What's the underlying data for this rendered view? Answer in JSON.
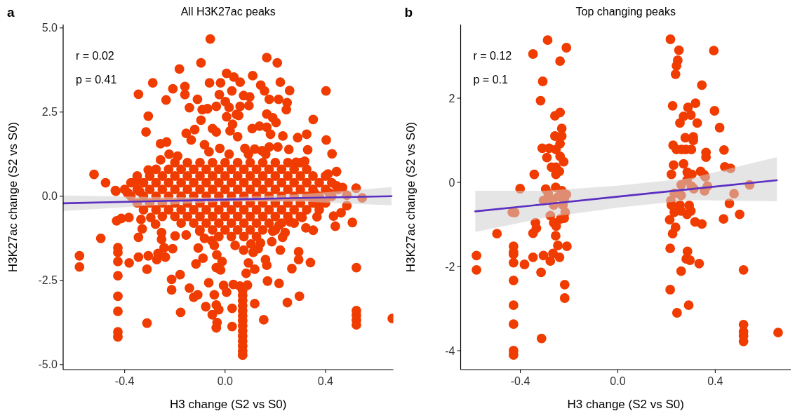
{
  "chart_data": [
    {
      "type": "scatter",
      "title": "All H3K27ac peaks",
      "xlabel": "H3 change (S2 vs S0)",
      "ylabel": "H3K27ac change (S2 vs S0)",
      "annotations": [
        "a",
        "r = 0.02",
        "p = 0.41"
      ],
      "xlim": [
        -0.645,
        0.67
      ],
      "ylim": [
        -5.15,
        5.1
      ],
      "xticks": [
        {
          "value": -0.4,
          "label": "-0.4"
        },
        {
          "value": 0,
          "label": "0.0"
        },
        {
          "value": 0.4,
          "label": "0.4"
        }
      ],
      "yticks": [
        {
          "value": -5,
          "label": "-5.0"
        },
        {
          "value": -2.5,
          "label": "-2.5"
        },
        {
          "value": 0,
          "label": "0.0"
        },
        {
          "value": 2.5,
          "label": "2.5"
        },
        {
          "value": 5,
          "label": "5.0"
        }
      ],
      "series": [
        {
          "marker": "circle",
          "color": "#f03c00",
          "x": [
            -0.059,
            0.166,
            0.208,
            -0.096,
            -0.182,
            -0.288,
            -0.345,
            -0.062,
            0.006,
            0.035,
            0.06,
            0.11,
            0.142,
            0.22,
            0.257,
            0.402,
            -0.208,
            -0.16,
            -0.16,
            -0.11,
            -0.235,
            -0.018,
            0.027,
            0.074,
            0.098,
            0.157,
            0.176,
            0.213,
            0.247,
            -0.023,
            0.001,
            0.016,
            0.06,
            0.095,
            -0.142,
            -0.091,
            -0.07,
            -0.035,
            0.045,
            0.054,
            0.166,
            0.19,
            0.203,
            0.244,
            0.351,
            -0.306,
            -0.315,
            -0.096,
            0.006,
            0.03,
            0.108,
            0.137,
            0.166,
            0.181,
            0.23,
            0.289,
            0.325,
            0.403,
            -0.155,
            -0.121,
            -0.05,
            -0.035,
            0.02,
            0.05,
            -0.257,
            -0.233,
            -0.135,
            -0.082,
            -0.021,
            0.079,
            0.118,
            0.147,
            0.176,
            0.21,
            0.254,
            0.329,
            0.426,
            -0.223,
            -0.189,
            -0.064,
            0.016,
            0.093,
            0.162,
            0.283,
            0.317,
            -0.257,
            -0.522,
            -0.476,
            -0.435,
            -0.388,
            -0.34,
            -0.306,
            -0.354,
            0.41,
            0.444,
            0.444,
            0.468,
            0.522,
            0.546,
            -0.437,
            -0.388,
            -0.432,
            -0.413,
            -0.383,
            -0.495,
            -0.58,
            -0.58,
            -0.427,
            -0.427,
            -0.427,
            -0.427,
            -0.427,
            -0.427,
            -0.427,
            -0.427,
            -0.382,
            -0.345,
            -0.345,
            -0.33,
            -0.311,
            -0.306,
            -0.311,
            -0.272,
            -0.267,
            -0.238,
            -0.243,
            -0.209,
            -0.253,
            -0.213,
            -0.213,
            -0.179,
            -0.177,
            -0.142,
            -0.125,
            -0.109,
            -0.116,
            -0.088,
            -0.107,
            -0.077,
            -0.065,
            -0.051,
            -0.043,
            -0.035,
            -0.025,
            -0.032,
            -0.035,
            -0.006,
            0.006,
            0.028,
            0.028,
            0.033,
            -0.035,
            -0.018,
            -0.033,
            -0.012,
            -0.043,
            -0.053,
            0.059,
            0.089,
            0.084,
            0.093,
            0.118,
            0.118,
            0.154,
            0.169,
            0.215,
            0.166,
            0.161,
            0.22,
            0.186,
            0.248,
            0.266,
            0.296,
            0.293,
            0.293,
            0.34,
            0.322,
            0.351,
            0.366,
            0.432,
            0.439,
            0.462,
            0.507,
            0.485,
            0.523,
            0.523,
            0.523,
            0.523,
            0.523,
            0.666,
            0.239,
            0.215,
            0.229,
            0.19,
            0.132,
            0.141,
            0.112,
            0.04,
            0.074,
            0.103,
            -0.082,
            -0.101,
            -0.155,
            -0.199,
            -0.253,
            -0.277,
            -0.296,
            -0.335,
            0.356,
            0.415,
            0.485,
            0.366,
            0.307,
            0.259,
            0.07,
            0.07,
            0.07,
            0.07,
            0.07,
            0.07,
            0.07,
            0.07,
            0.07,
            0.07,
            0.07,
            0.07,
            0.07,
            0.07,
            -0.2,
            -0.15,
            -0.1,
            -0.05,
            0,
            0.05,
            0.1,
            0.15,
            0.2,
            0.25,
            0.3,
            -0.275,
            -0.225,
            -0.175,
            -0.125,
            -0.075,
            -0.025,
            0.025,
            0.075,
            0.125,
            0.175,
            0.225,
            0.275,
            0.325,
            -0.35,
            -0.3,
            -0.25,
            -0.2,
            -0.15,
            -0.1,
            -0.05,
            0,
            0.05,
            0.1,
            0.15,
            0.2,
            0.25,
            0.3,
            0.35,
            0.4,
            -0.375,
            -0.325,
            -0.275,
            -0.225,
            -0.175,
            -0.125,
            -0.075,
            -0.025,
            0.025,
            0.075,
            0.125,
            0.175,
            0.225,
            0.275,
            0.325,
            0.375,
            0.425,
            -0.4,
            -0.35,
            -0.3,
            -0.25,
            -0.2,
            -0.15,
            -0.1,
            -0.05,
            0,
            0.05,
            0.1,
            0.15,
            0.2,
            0.25,
            0.3,
            0.35,
            0.4,
            0.45,
            -0.375,
            -0.325,
            -0.275,
            -0.225,
            -0.175,
            -0.125,
            -0.075,
            -0.025,
            0.025,
            0.075,
            0.125,
            0.175,
            0.225,
            0.275,
            0.325,
            0.375,
            0.425,
            -0.35,
            -0.3,
            -0.25,
            -0.2,
            -0.15,
            -0.1,
            -0.05,
            0,
            0.05,
            0.1,
            0.15,
            0.2,
            0.25,
            0.3,
            0.35,
            0.4,
            -0.325,
            -0.275,
            -0.225,
            -0.175,
            -0.125,
            -0.075,
            -0.025,
            0.025,
            0.075,
            0.125,
            0.175,
            0.225,
            0.275,
            0.325,
            0.375,
            -0.25,
            -0.2,
            -0.15,
            -0.1,
            -0.05,
            0,
            0.05,
            0.1,
            0.15,
            0.2,
            0.25,
            0.3,
            -0.175,
            -0.125,
            -0.075,
            -0.025,
            0.025,
            0.075,
            0.125,
            0.175,
            0.225,
            0.275,
            -0.1,
            -0.05,
            0,
            0.05,
            0.1,
            0.15,
            0.2,
            -0.025,
            0.025,
            0.075,
            0.125
          ],
          "values": [
            4.67,
            4.12,
            3.96,
            3.96,
            3.78,
            3.37,
            3.03,
            3.37,
            3.65,
            3.54,
            3.39,
            3.58,
            3.3,
            3.39,
            3.14,
            3.13,
            3.19,
            3.26,
            3.02,
            2.88,
            2.86,
            3.37,
            3.13,
            2.99,
            2.95,
            3.13,
            2.88,
            2.88,
            2.78,
            3.02,
            2.81,
            2.64,
            2.67,
            2.69,
            2.63,
            2.57,
            2.6,
            2.67,
            2.43,
            2.4,
            2.44,
            2.33,
            2.19,
            2.57,
            2.28,
            2.38,
            1.91,
            2.26,
            2.36,
            2.14,
            2.01,
            2.08,
            2.05,
            1.84,
            1.79,
            1.74,
            1.84,
            1.67,
            1.87,
            1.98,
            2.01,
            1.91,
            1.94,
            1.77,
            1.56,
            1.61,
            1.67,
            1.53,
            1.42,
            1.42,
            1.4,
            1.35,
            1.46,
            1.46,
            1.39,
            1.38,
            1.26,
            1.25,
            1.19,
            1.32,
            1.25,
            1.25,
            1.25,
            1.01,
            1.04,
            1.08,
            0.65,
            0.4,
            0.15,
            0.09,
            0.14,
            0.78,
            0.45,
            0.66,
            0.73,
            0.31,
            0.26,
            0.24,
            -0.05,
            0.17,
            0.1,
            -0.73,
            -0.66,
            -0.63,
            -1.25,
            -1.77,
            -2.1,
            -1.53,
            -1.67,
            -1.94,
            -2.36,
            -2.97,
            -3.42,
            -4.03,
            -4.18,
            -1.98,
            -1.81,
            -1.22,
            -0.97,
            -2.17,
            -1.77,
            -3.77,
            -1.88,
            -1.7,
            -1.81,
            -1.53,
            -1.56,
            -1.28,
            -2.47,
            -2.78,
            -2.33,
            -3.45,
            -2.73,
            -3.0,
            -2.93,
            -2.01,
            -1.84,
            -1.54,
            -3.28,
            -2.57,
            -3.52,
            -2.93,
            -3.23,
            -3.37,
            -3.75,
            -3.91,
            -2.65,
            -2.85,
            -3.87,
            -3.33,
            -2.62,
            -2.12,
            -2.19,
            -1.74,
            -1.94,
            -1.46,
            -1.32,
            -2.67,
            -2.64,
            -2.29,
            -1.98,
            -3.19,
            -2.17,
            -3.67,
            -2.52,
            -2.59,
            -2.05,
            -1.88,
            -1.6,
            -1.35,
            -3.16,
            -2.15,
            -2.97,
            -1.65,
            -1.88,
            -1.97,
            -0.94,
            -1.01,
            -0.61,
            -0.59,
            -0.89,
            -0.49,
            -0.78,
            -0.28,
            -2.12,
            -3.4,
            -3.54,
            -3.68,
            -3.82,
            -3.63,
            -1.08,
            -0.86,
            -1.22,
            -1.04,
            -1.56,
            -1.39,
            -1.67,
            -1.46,
            -1.6,
            -1.42,
            -1.25,
            -1.04,
            -1.15,
            -1.18,
            -1.08,
            -0.83,
            -0.63,
            -0.69,
            0.1,
            0.1,
            0.03,
            -0.21,
            -0.63,
            -0.76,
            -2.8,
            -2.95,
            -3.1,
            -3.25,
            -3.4,
            -3.55,
            -3.7,
            -3.85,
            -4.0,
            -4.15,
            -4.3,
            -4.45,
            -4.6,
            -4.72,
            1,
            1,
            1,
            1,
            1,
            1,
            1,
            1,
            1,
            1,
            1,
            0.8,
            0.8,
            0.8,
            0.8,
            0.8,
            0.8,
            0.8,
            0.8,
            0.8,
            0.8,
            0.8,
            0.8,
            0.8,
            0.6,
            0.6,
            0.6,
            0.6,
            0.6,
            0.6,
            0.6,
            0.6,
            0.6,
            0.6,
            0.6,
            0.6,
            0.6,
            0.6,
            0.6,
            0.6,
            0.4,
            0.4,
            0.4,
            0.4,
            0.4,
            0.4,
            0.4,
            0.4,
            0.4,
            0.4,
            0.4,
            0.4,
            0.4,
            0.4,
            0.4,
            0.4,
            0.4,
            0.2,
            0.2,
            0.2,
            0.2,
            0.2,
            0.2,
            0.2,
            0.2,
            0.2,
            0.2,
            0.2,
            0.2,
            0.2,
            0.2,
            0.2,
            0.2,
            0.2,
            0.2,
            0,
            0,
            0,
            0,
            0,
            0,
            0,
            0,
            0,
            0,
            0,
            0,
            0,
            0,
            0,
            0,
            0,
            -0.2,
            -0.2,
            -0.2,
            -0.2,
            -0.2,
            -0.2,
            -0.2,
            -0.2,
            -0.2,
            -0.2,
            -0.2,
            -0.2,
            -0.2,
            -0.2,
            -0.2,
            -0.2,
            -0.4,
            -0.4,
            -0.4,
            -0.4,
            -0.4,
            -0.4,
            -0.4,
            -0.4,
            -0.4,
            -0.4,
            -0.4,
            -0.4,
            -0.4,
            -0.4,
            -0.4,
            -0.6,
            -0.6,
            -0.6,
            -0.6,
            -0.6,
            -0.6,
            -0.6,
            -0.6,
            -0.6,
            -0.6,
            -0.6,
            -0.6,
            -0.8,
            -0.8,
            -0.8,
            -0.8,
            -0.8,
            -0.8,
            -0.8,
            -0.8,
            -0.8,
            -0.8,
            -1,
            -1,
            -1,
            -1,
            -1,
            -1,
            -1,
            -1.2,
            -1.2,
            -1.2,
            -1.2
          ]
        },
        {
          "type": "line",
          "color": "#5a2fc2",
          "x": [
            -0.645,
            -0.3,
            0,
            0.3,
            0.663
          ],
          "values": [
            -0.21,
            -0.15,
            -0.1,
            -0.05,
            0.0
          ],
          "lower": [
            -0.44,
            -0.28,
            -0.16,
            -0.16,
            -0.27
          ],
          "upper": [
            0.02,
            -0.02,
            -0.04,
            0.06,
            0.27
          ]
        }
      ]
    },
    {
      "type": "scatter",
      "title": "Top changing peaks",
      "xlabel": "H3 change (S2 vs S0)",
      "ylabel": "H3K27ac change (S2 vs S0)",
      "annotations": [
        "b",
        "r = 0.12",
        "p = 0.1"
      ],
      "xlim": [
        -0.645,
        0.71
      ],
      "ylim": [
        -4.45,
        3.75
      ],
      "xticks": [
        -0.4,
        {
          "value": 0,
          "label": "0.0"
        },
        0.4
      ],
      "yticks": [
        -4,
        -2,
        0,
        2
      ],
      "series": [
        {
          "marker": "circle",
          "color": "#f03c00",
          "x": [
            -0.348,
            -0.288,
            -0.211,
            -0.237,
            -0.308,
            -0.317,
            -0.258,
            -0.237,
            -0.23,
            -0.258,
            -0.23,
            -0.237,
            -0.31,
            -0.282,
            -0.254,
            -0.291,
            -0.237,
            -0.222,
            -0.272,
            -0.254,
            -0.24,
            -0.254,
            -0.343,
            -0.401,
            0.216,
            0.251,
            0.394,
            0.246,
            0.241,
            0.237,
            0.345,
            0.225,
            0.288,
            0.319,
            0.27,
            0.3,
            0.397,
            0.255,
            0.326,
            0.418,
            0.277,
            0.31,
            0.31,
            0.227,
            0.241,
            0.262,
            0.28,
            0.302,
            0.436,
            0.362,
            0.362,
            0.229,
            0.27,
            0.439,
            0.463,
            0.22,
            0.285,
            0.304,
            0.34,
            0.354,
            -0.296,
            -0.255,
            -0.23,
            -0.211,
            -0.305,
            -0.272,
            -0.244,
            -0.22,
            -0.286,
            -0.263,
            -0.225,
            -0.216,
            -0.277,
            -0.433,
            -0.423,
            -0.235,
            -0.22,
            -0.338,
            -0.334,
            -0.348,
            -0.263,
            -0.253,
            -0.255,
            -0.496,
            -0.428,
            -0.428,
            -0.428,
            -0.428,
            -0.58,
            -0.58,
            -0.383,
            -0.348,
            -0.305,
            -0.266,
            -0.246,
            -0.209,
            -0.239,
            -0.277,
            -0.315,
            -0.428,
            -0.218,
            -0.218,
            -0.428,
            -0.428,
            -0.313,
            -0.428,
            -0.428,
            0.26,
            0.284,
            0.302,
            0.359,
            0.368,
            0.356,
            0.232,
            0.26,
            0.218,
            0.312,
            0.477,
            0.541,
            0.22,
            0.255,
            0.293,
            0.232,
            0.26,
            0.284,
            0.3,
            0.213,
            0.317,
            0.345,
            0.237,
            0.225,
            0.458,
            0.434,
            0.5,
            0.215,
            0.286,
            0.281,
            0.296,
            0.334,
            0.26,
            0.516,
            0.215,
            0.291,
            0.243,
            0.516,
            0.516,
            0.516,
            0.516,
            0.658
          ],
          "values": [
            3.05,
            3.38,
            3.2,
            2.88,
            2.4,
            1.94,
            1.58,
            1.66,
            1.28,
            1.1,
            1.1,
            0.92,
            0.81,
            0.81,
            0.78,
            0.59,
            0.62,
            0.49,
            0.36,
            0.36,
            0.26,
            0.19,
            0.19,
            -0.15,
            3.4,
            3.14,
            3.13,
            2.9,
            2.77,
            2.57,
            2.31,
            1.82,
            1.78,
            1.88,
            1.57,
            1.6,
            1.7,
            1.41,
            1.41,
            1.3,
            1.06,
            1.08,
            1.0,
            0.88,
            0.78,
            0.78,
            0.78,
            0.78,
            0.77,
            0.71,
            0.6,
            0.41,
            0.44,
            0.37,
            0.33,
            0.19,
            0.24,
            0.19,
            0.26,
            0.18,
            -0.16,
            -0.12,
            -0.2,
            -0.29,
            -0.43,
            -0.4,
            -0.34,
            -0.4,
            -0.26,
            -0.54,
            -0.54,
            -0.71,
            -0.79,
            -0.71,
            -0.72,
            -0.87,
            -0.85,
            -0.96,
            -1.09,
            -1.21,
            -0.96,
            -1.04,
            -1.27,
            -1.22,
            -1.52,
            -1.66,
            -1.71,
            -1.91,
            -1.74,
            -2.08,
            -1.95,
            -1.78,
            -1.74,
            -1.69,
            -1.5,
            -1.52,
            -1.78,
            -1.87,
            -2.14,
            -2.33,
            -2.43,
            -2.75,
            -2.92,
            -3.37,
            -3.71,
            -4.0,
            -4.1,
            -0.06,
            0.05,
            -0.09,
            0.13,
            -0.09,
            -0.2,
            -0.26,
            -0.31,
            -0.43,
            -0.15,
            -0.27,
            -0.06,
            -0.54,
            -0.54,
            -0.55,
            -0.71,
            -0.68,
            -0.76,
            -0.68,
            -0.89,
            -0.94,
            -0.99,
            -1.07,
            -1.22,
            -0.5,
            -0.87,
            -0.76,
            -1.57,
            -1.64,
            -1.82,
            -1.85,
            -1.93,
            -2.11,
            -2.08,
            -2.55,
            -2.92,
            -3.1,
            -3.38,
            -3.55,
            -3.65,
            -3.78,
            -3.57
          ]
        },
        {
          "type": "line",
          "color": "#5a2fc2",
          "x": [
            -0.585,
            -0.3,
            0,
            0.3,
            0.653
          ],
          "values": [
            -0.69,
            -0.52,
            -0.34,
            -0.16,
            0.05
          ],
          "lower": [
            -1.18,
            -0.84,
            -0.6,
            -0.42,
            -0.45
          ],
          "upper": [
            -0.2,
            -0.2,
            -0.08,
            0.1,
            0.6
          ]
        }
      ]
    }
  ]
}
